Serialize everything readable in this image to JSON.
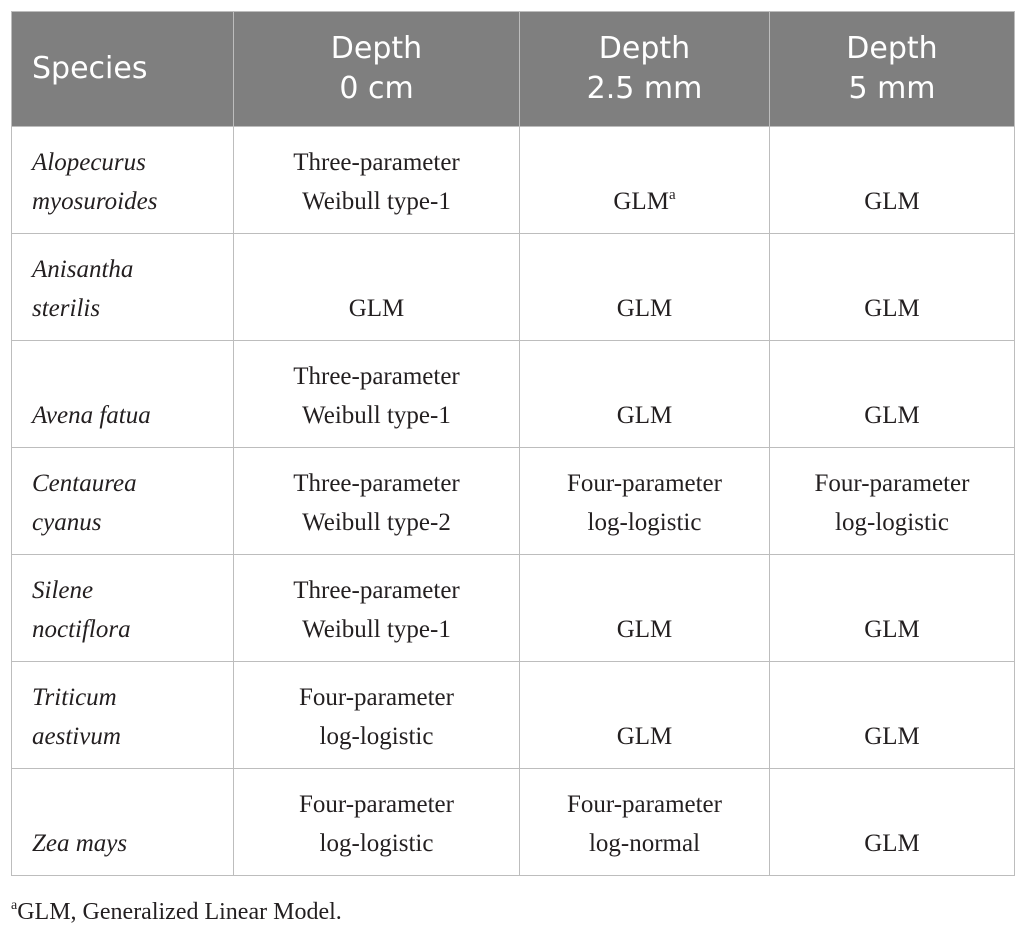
{
  "table": {
    "headers": [
      {
        "lines": [
          "Species"
        ]
      },
      {
        "lines": [
          "Depth",
          "0 cm"
        ]
      },
      {
        "lines": [
          "Depth",
          "2.5 mm"
        ]
      },
      {
        "lines": [
          "Depth",
          "5 mm"
        ]
      }
    ],
    "rows": [
      {
        "species": [
          "Alopecurus",
          "myosuroides"
        ],
        "cells": [
          {
            "lines": [
              "Three-parameter",
              "Weibull type-1"
            ]
          },
          {
            "lines": [
              "GLM"
            ],
            "sup": "a"
          },
          {
            "lines": [
              "GLM"
            ]
          }
        ]
      },
      {
        "species": [
          "Anisantha",
          "sterilis"
        ],
        "cells": [
          {
            "lines": [
              "GLM"
            ]
          },
          {
            "lines": [
              "GLM"
            ]
          },
          {
            "lines": [
              "GLM"
            ]
          }
        ]
      },
      {
        "species": [
          "Avena fatua"
        ],
        "cells": [
          {
            "lines": [
              "Three-parameter",
              "Weibull type-1"
            ]
          },
          {
            "lines": [
              "GLM"
            ]
          },
          {
            "lines": [
              "GLM"
            ]
          }
        ]
      },
      {
        "species": [
          "Centaurea",
          "cyanus"
        ],
        "cells": [
          {
            "lines": [
              "Three-parameter",
              "Weibull type-2"
            ]
          },
          {
            "lines": [
              "Four-parameter",
              "log-logistic"
            ]
          },
          {
            "lines": [
              "Four-parameter",
              "log-logistic"
            ]
          }
        ]
      },
      {
        "species": [
          "Silene",
          "noctiflora"
        ],
        "cells": [
          {
            "lines": [
              "Three-parameter",
              "Weibull type-1"
            ]
          },
          {
            "lines": [
              "GLM"
            ]
          },
          {
            "lines": [
              "GLM"
            ]
          }
        ]
      },
      {
        "species": [
          "Triticum",
          "aestivum"
        ],
        "cells": [
          {
            "lines": [
              "Four-parameter",
              "log-logistic"
            ]
          },
          {
            "lines": [
              "GLM"
            ]
          },
          {
            "lines": [
              "GLM"
            ]
          }
        ]
      },
      {
        "species": [
          "Zea mays"
        ],
        "cells": [
          {
            "lines": [
              "Four-parameter",
              "log-logistic"
            ]
          },
          {
            "lines": [
              "Four-parameter",
              "log-normal"
            ]
          },
          {
            "lines": [
              "GLM"
            ]
          }
        ]
      }
    ]
  },
  "footnote": {
    "marker": "a",
    "text": "GLM, Generalized Linear Model."
  },
  "colors": {
    "header_bg": "#7f7f7f",
    "header_text": "#ffffff",
    "border": "#bdbdbd",
    "body_text": "#231f20"
  }
}
